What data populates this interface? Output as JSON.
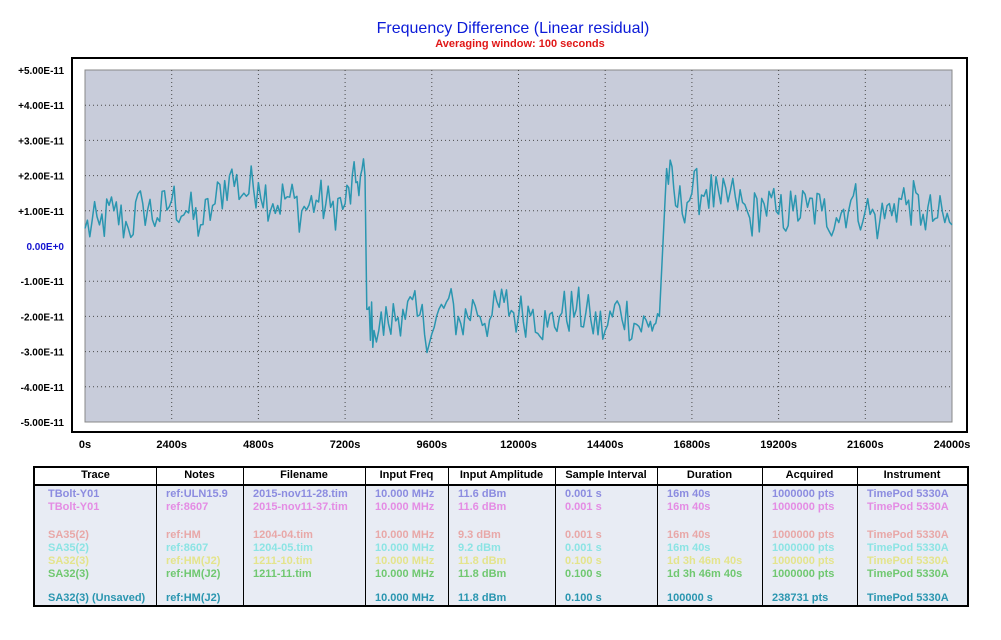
{
  "chart_data": {
    "type": "line",
    "title": "Frequency Difference (Linear residual)",
    "subtitle": "Averaging window: 100 seconds",
    "xlabel": "",
    "ylabel": "",
    "xlim": [
      0,
      24000
    ],
    "ylim": [
      -5e-11,
      5e-11
    ],
    "x_ticks": [
      "0s",
      "2400s",
      "4800s",
      "7200s",
      "9600s",
      "12000s",
      "14400s",
      "16800s",
      "19200s",
      "21600s",
      "24000s"
    ],
    "y_ticks": [
      "+5.00E-11",
      "+4.00E-11",
      "+3.00E-11",
      "+2.00E-11",
      "+1.00E-11",
      "0.00E+0",
      "-1.00E-11",
      "-2.00E-11",
      "-3.00E-11",
      "-4.00E-11",
      "-5.00E-11"
    ],
    "grid": true,
    "series": [
      {
        "name": "SA32(3) (Unsaved)",
        "color": "#2a96b0",
        "x": [
          0,
          400,
          800,
          1200,
          1600,
          2000,
          2400,
          2800,
          3200,
          3600,
          4000,
          4400,
          4800,
          5200,
          5600,
          6000,
          6400,
          6800,
          7200,
          7500,
          7750,
          7800,
          8000,
          8400,
          8800,
          9200,
          9600,
          10000,
          10400,
          10800,
          11200,
          11600,
          12000,
          12400,
          12800,
          13200,
          13600,
          14000,
          14400,
          14800,
          15200,
          15600,
          15900,
          16000,
          16100,
          16400,
          16800,
          17200,
          17600,
          18000,
          18400,
          18800,
          19200,
          19600,
          20000,
          20400,
          20800,
          21200,
          21600,
          22000,
          22400,
          22800,
          23200,
          23600,
          24000
        ],
        "y": [
          5e-12,
          6e-12,
          1e-11,
          5e-12,
          1.2e-11,
          8e-12,
          1.3e-11,
          1e-11,
          6e-12,
          1.2e-11,
          2e-11,
          1.5e-11,
          1.8e-11,
          1.2e-11,
          1.4e-11,
          1e-11,
          1.3e-11,
          1.1e-11,
          1.2e-11,
          1.8e-11,
          2e-11,
          -1.8e-11,
          -2.4e-11,
          -2.2e-11,
          -1.8e-11,
          -2e-11,
          -2.5e-11,
          -1.6e-11,
          -2.2e-11,
          -1.7e-11,
          -2.1e-11,
          -1.6e-11,
          -2e-11,
          -1.8e-11,
          -2.3e-11,
          -1.9e-11,
          -1.8e-11,
          -2.1e-11,
          -2.4e-11,
          -1.7e-11,
          -2.2e-11,
          -2.3e-11,
          -2e-11,
          1e-12,
          2.2e-11,
          1.1e-11,
          1.5e-11,
          1.6e-11,
          1.2e-11,
          1.4e-11,
          8e-12,
          1.2e-11,
          9e-12,
          1e-11,
          1.1e-11,
          1e-11,
          8e-12,
          1.3e-11,
          1e-11,
          7e-12,
          1.2e-11,
          1.3e-11,
          9e-12,
          8e-12,
          6e-12
        ]
      }
    ]
  },
  "legend_table": {
    "headers": [
      "Trace",
      "Notes",
      "Filename",
      "Input Freq",
      "Input Amplitude",
      "Sample Interval",
      "Duration",
      "Acquired",
      "Instrument"
    ],
    "rows": [
      {
        "color": "#8c8ce0",
        "cells": [
          "TBolt-Y01",
          "ref:ULN15.9",
          "2015-nov11-28.tim",
          "10.000 MHz",
          "11.6 dBm",
          "0.001 s",
          "16m 40s",
          "1000000 pts",
          "TimePod 5330A"
        ]
      },
      {
        "color": "#e48ce4",
        "cells": [
          "TBolt-Y01",
          "ref:8607",
          "2015-nov11-37.tim",
          "10.000 MHz",
          "11.6 dBm",
          "0.001 s",
          "16m 40s",
          "1000000 pts",
          "TimePod 5330A"
        ]
      },
      {
        "color": "#e8a8a8",
        "cells": [
          "SA35(2)",
          "ref:HM",
          "1204-04.tim",
          "10.000 MHz",
          "9.3 dBm",
          "0.001 s",
          "16m 40s",
          "1000000 pts",
          "TimePod 5330A"
        ]
      },
      {
        "color": "#8ce4e4",
        "cells": [
          "SA35(2)",
          "ref:8607",
          "1204-05.tim",
          "10.000 MHz",
          "9.2 dBm",
          "0.001 s",
          "16m 40s",
          "1000000 pts",
          "TimePod 5330A"
        ]
      },
      {
        "color": "#e4e48c",
        "cells": [
          "SA32(3)",
          "ref:HM(J2)",
          "1211-10.tim",
          "10.000 MHz",
          "11.8 dBm",
          "0.100 s",
          "1d 3h 46m 40s",
          "1000000 pts",
          "TimePod 5330A"
        ]
      },
      {
        "color": "#70c870",
        "cells": [
          "SA32(3)",
          "ref:HM(J2)",
          "1211-11.tim",
          "10.000 MHz",
          "11.8 dBm",
          "0.100 s",
          "1d 3h 46m 40s",
          "1000000 pts",
          "TimePod 5330A"
        ]
      },
      {
        "color": "#2a96b0",
        "cells": [
          "SA32(3) (Unsaved)",
          "ref:HM(J2)",
          "",
          "10.000 MHz",
          "11.8 dBm",
          "0.100 s",
          "100000 s",
          "238731 pts",
          "TimePod 5330A"
        ]
      }
    ]
  }
}
